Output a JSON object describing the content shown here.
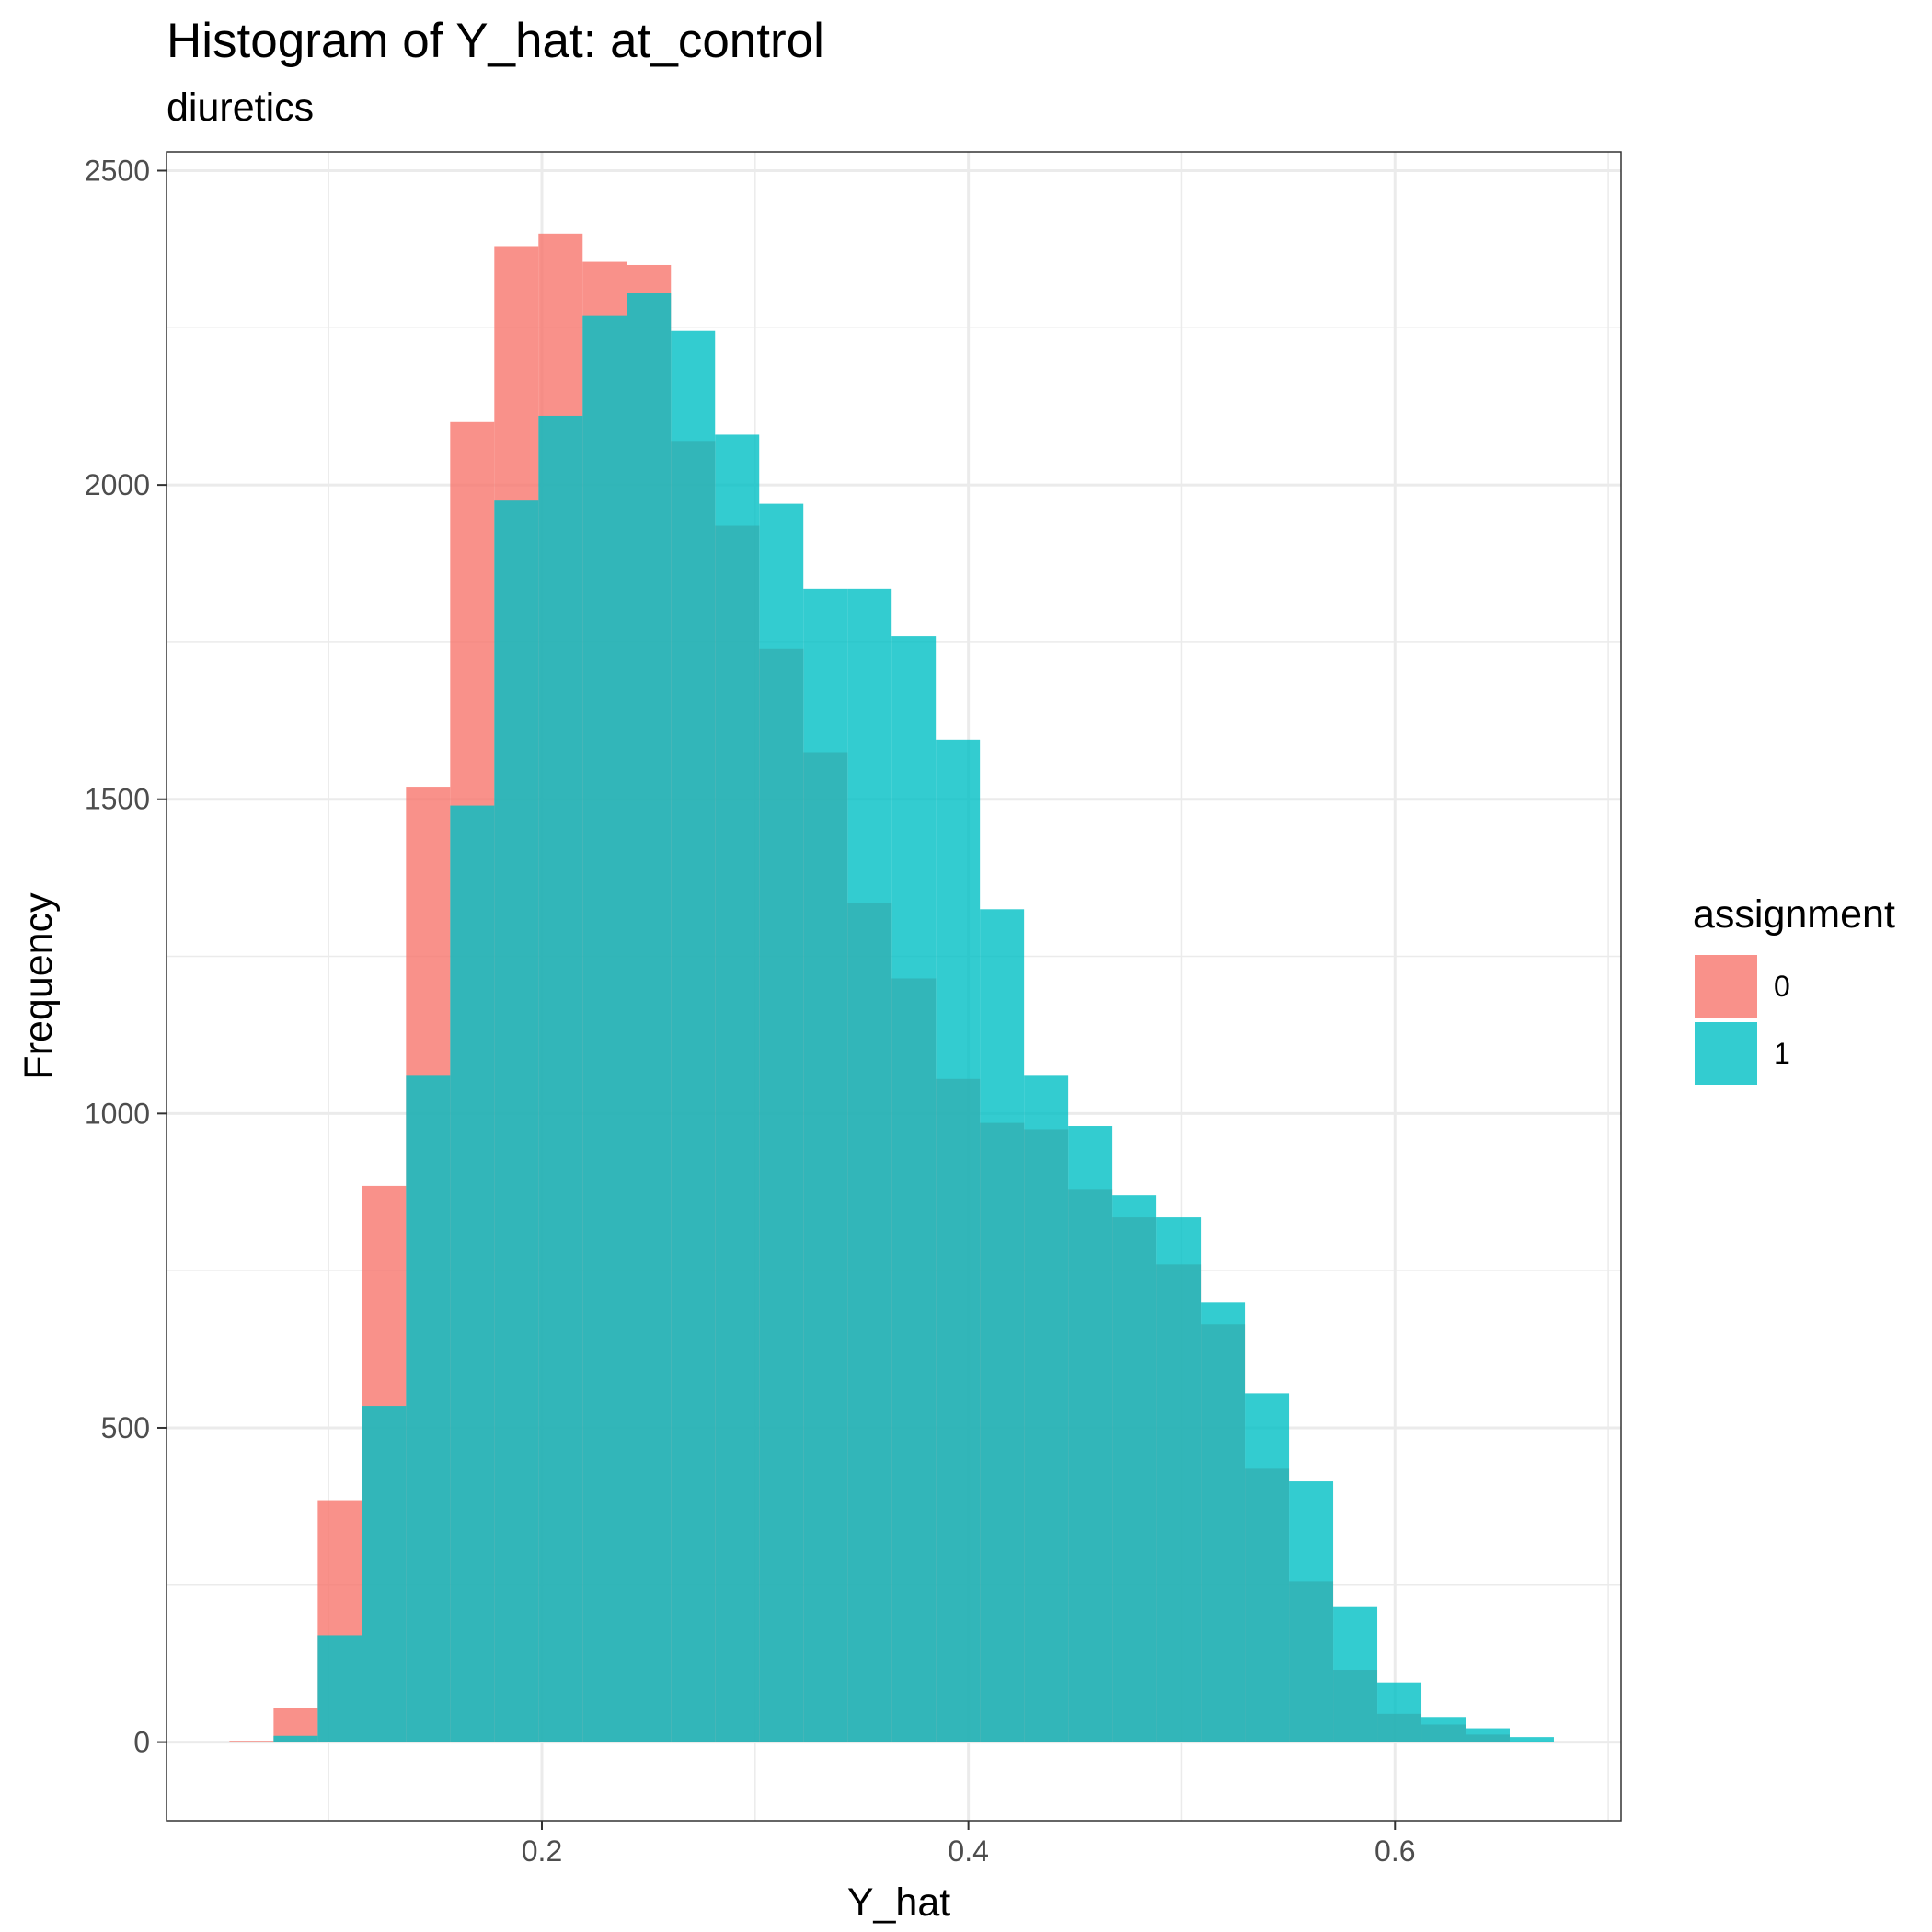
{
  "chart_data": {
    "type": "bar",
    "title": "Histogram of Y_hat: at_control",
    "subtitle": "diuretics",
    "xlabel": "Y_hat",
    "ylabel": "Frequency",
    "xlim": [
      0.024,
      0.706
    ],
    "ylim": [
      -125,
      2530
    ],
    "x_ticks": [
      0.2,
      0.4,
      0.6
    ],
    "x_tick_labels": [
      "0.2",
      "0.4",
      "0.6"
    ],
    "y_ticks": [
      0,
      500,
      1000,
      1500,
      2000,
      2500
    ],
    "y_tick_labels": [
      "0",
      "500",
      "1000",
      "1500",
      "2000",
      "2500"
    ],
    "bin_width": 0.0207,
    "bin_start": 0.0535,
    "grid": true,
    "legend": {
      "title": "assignment",
      "position": "right",
      "entries": [
        {
          "label": "0",
          "color": "#F8766D"
        },
        {
          "label": "1",
          "color": "#00BFC4"
        }
      ]
    },
    "series": [
      {
        "name": "0",
        "color": "#F8766D",
        "values": [
          2,
          55,
          385,
          885,
          1520,
          2100,
          2380,
          2400,
          2355,
          2350,
          2070,
          1935,
          1740,
          1575,
          1335,
          1215,
          1055,
          985,
          975,
          880,
          835,
          760,
          665,
          435,
          255,
          115,
          45,
          28,
          12,
          0
        ]
      },
      {
        "name": "1",
        "color": "#00BFC4",
        "values": [
          0,
          10,
          170,
          535,
          1060,
          1490,
          1975,
          2110,
          2270,
          2305,
          2245,
          2080,
          1970,
          1835,
          1835,
          1760,
          1595,
          1325,
          1060,
          980,
          870,
          835,
          700,
          555,
          415,
          215,
          95,
          40,
          22,
          8
        ]
      }
    ]
  }
}
